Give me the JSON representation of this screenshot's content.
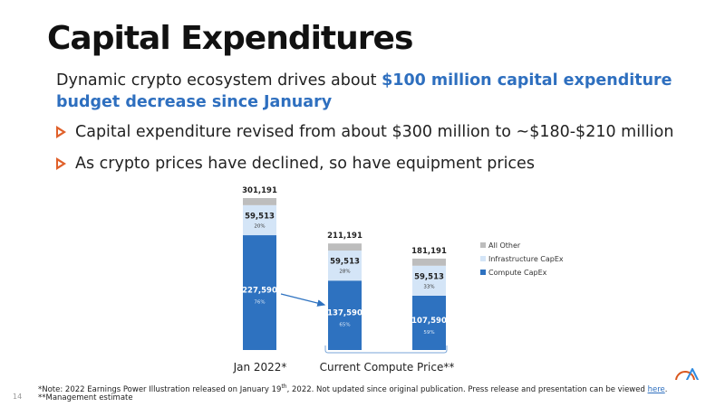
{
  "title": "Capital Expenditures",
  "subtitle": {
    "text": "Dynamic crypto ecosystem drives about ",
    "highlight": "$100 million capital expenditure budget decrease since January"
  },
  "bullets": [
    "Capital expenditure revised from about $300 million to ~$180-$210 million",
    "As crypto prices have declined, so have equipment prices"
  ],
  "notes": {
    "note1_a": "*Note: 2022 Earnings Power Illustration released on January 19",
    "note1_sup": "th",
    "note1_b": ", 2022. Not updated since original publication. Press release and presentation can be viewed ",
    "link": "here",
    "note1_end": ".",
    "note2": "**Management estimate"
  },
  "page_number": "14",
  "colors": {
    "compute": "#2e72c0",
    "infra": "#d4e5f7",
    "other": "#bdbdbd",
    "accent": "#2e6fbf",
    "bullet": "#e0602a"
  },
  "chart_data": {
    "type": "bar",
    "stacked": true,
    "categories": [
      "Jan 2022",
      "Current Compute Price A",
      "Current Compute Price B"
    ],
    "group_labels": [
      "Jan 2022*",
      "Current Compute Price**"
    ],
    "series": [
      {
        "name": "Compute CapEx",
        "values": [
          227590,
          137590,
          107590
        ],
        "labels": [
          "227,590",
          "137,590",
          "107,590"
        ],
        "pct": [
          "76%",
          "65%",
          "59%"
        ]
      },
      {
        "name": "Infrastructure CapEx",
        "values": [
          59513,
          59513,
          59513
        ],
        "labels": [
          "59,513",
          "59,513",
          "59,513"
        ],
        "pct": [
          "20%",
          "28%",
          "33%"
        ]
      },
      {
        "name": "All Other",
        "values": [
          14088,
          14088,
          14088
        ]
      }
    ],
    "totals": [
      "301,191",
      "211,191",
      "181,191"
    ],
    "legend": [
      "All Other",
      "Infrastructure CapEx",
      "Compute CapEx"
    ],
    "legend_position": "right"
  }
}
